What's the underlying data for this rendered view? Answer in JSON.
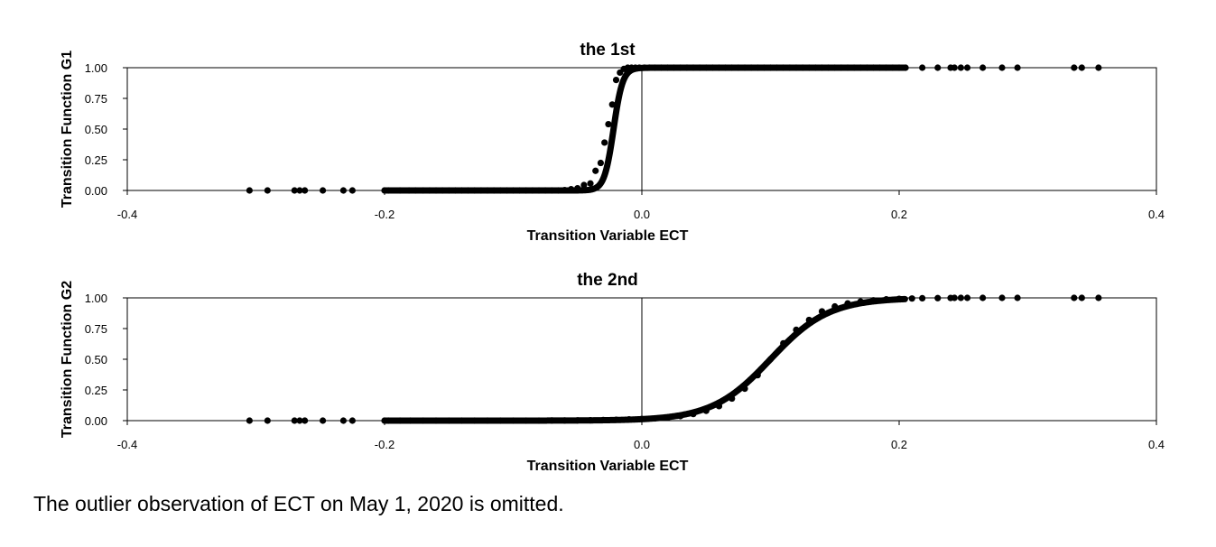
{
  "chart_data": [
    {
      "type": "scatter",
      "title": "the 1st",
      "xlabel": "Transition Variable ECT",
      "ylabel": "Transition Function G1",
      "xlim": [
        -0.4,
        0.4
      ],
      "ylim": [
        0,
        1
      ],
      "xticks": [
        "-0.4",
        "-0.2",
        "0.0",
        "0.2",
        "0.4"
      ],
      "yticks": [
        "0.00",
        "0.25",
        "0.50",
        "0.75",
        "1.00"
      ],
      "grid": false,
      "curve": {
        "form": "logistic",
        "center": -0.022,
        "slope": 280
      },
      "x": [
        -0.305,
        -0.291,
        -0.27,
        -0.266,
        -0.262,
        -0.248,
        -0.232,
        -0.225,
        -0.2,
        -0.197,
        -0.188,
        -0.181,
        -0.176,
        -0.17,
        -0.165,
        -0.16,
        -0.155,
        -0.15,
        -0.145,
        -0.14,
        -0.135,
        -0.13,
        -0.125,
        -0.12,
        -0.115,
        -0.11,
        -0.105,
        -0.1,
        -0.095,
        -0.09,
        -0.085,
        -0.08,
        -0.075,
        -0.07,
        -0.065,
        -0.06,
        -0.055,
        -0.05,
        -0.045,
        -0.04,
        -0.036,
        -0.032,
        -0.029,
        -0.026,
        -0.023,
        -0.02,
        -0.017,
        -0.014,
        -0.011,
        -0.008,
        -0.005,
        -0.002,
        0.002,
        0.006,
        0.01,
        0.015,
        0.02,
        0.025,
        0.03,
        0.035,
        0.04,
        0.045,
        0.05,
        0.055,
        0.06,
        0.065,
        0.07,
        0.075,
        0.08,
        0.085,
        0.09,
        0.095,
        0.1,
        0.105,
        0.11,
        0.115,
        0.12,
        0.125,
        0.13,
        0.135,
        0.14,
        0.145,
        0.15,
        0.155,
        0.16,
        0.165,
        0.17,
        0.175,
        0.18,
        0.185,
        0.19,
        0.195,
        0.2,
        0.205,
        0.218,
        0.23,
        0.24,
        0.243,
        0.248,
        0.253,
        0.265,
        0.28,
        0.292,
        0.336,
        0.342,
        0.355
      ],
      "y": [
        0,
        0,
        0,
        0,
        0,
        0,
        0,
        0,
        0,
        0,
        0,
        0,
        0,
        0,
        0,
        0,
        0,
        0,
        0,
        0,
        0,
        0,
        0,
        0,
        0,
        0,
        0,
        0,
        0,
        0,
        0,
        0,
        0,
        0,
        0,
        0.003,
        0.01,
        0.018,
        0.044,
        0.057,
        0.16,
        0.224,
        0.39,
        0.54,
        0.7,
        0.9,
        0.96,
        0.99,
        1,
        1,
        1,
        1,
        1,
        1,
        1,
        1,
        1,
        1,
        1,
        1,
        1,
        1,
        1,
        1,
        1,
        1,
        1,
        1,
        1,
        1,
        1,
        1,
        1,
        1,
        1,
        1,
        1,
        1,
        1,
        1,
        1,
        1,
        1,
        1,
        1,
        1,
        1,
        1,
        1,
        1,
        1,
        1,
        1,
        1,
        1,
        1,
        1,
        1,
        1,
        1,
        1,
        1,
        1,
        1,
        1,
        1
      ]
    },
    {
      "type": "scatter",
      "title": "the 2nd",
      "xlabel": "Transition Variable ECT",
      "ylabel": "Transition Function G2",
      "xlim": [
        -0.4,
        0.4
      ],
      "ylim": [
        0,
        1
      ],
      "xticks": [
        "-0.4",
        "-0.2",
        "0.0",
        "0.2",
        "0.4"
      ],
      "yticks": [
        "0.00",
        "0.25",
        "0.50",
        "0.75",
        "1.00"
      ],
      "grid": false,
      "curve": {
        "form": "logistic",
        "center": 0.1,
        "slope": 44
      },
      "x": [
        -0.305,
        -0.291,
        -0.27,
        -0.266,
        -0.262,
        -0.248,
        -0.232,
        -0.225,
        -0.2,
        -0.197,
        -0.188,
        -0.18,
        -0.17,
        -0.16,
        -0.15,
        -0.14,
        -0.13,
        -0.12,
        -0.11,
        -0.1,
        -0.09,
        -0.08,
        -0.07,
        -0.06,
        -0.05,
        -0.04,
        -0.03,
        -0.02,
        -0.01,
        0,
        0.01,
        0.02,
        0.03,
        0.04,
        0.05,
        0.06,
        0.07,
        0.08,
        0.09,
        0.1,
        0.11,
        0.12,
        0.13,
        0.14,
        0.15,
        0.16,
        0.17,
        0.18,
        0.19,
        0.2,
        0.21,
        0.218,
        0.23,
        0.24,
        0.243,
        0.248,
        0.253,
        0.265,
        0.28,
        0.292,
        0.336,
        0.342,
        0.355
      ],
      "y": [
        0,
        0,
        0,
        0,
        0,
        0,
        0,
        0,
        0,
        0,
        0,
        0,
        0,
        0,
        0,
        0,
        0,
        0,
        0,
        0,
        0,
        0,
        0.001,
        0.001,
        0.002,
        0.003,
        0.005,
        0.007,
        0.01,
        0.013,
        0.018,
        0.025,
        0.037,
        0.054,
        0.08,
        0.118,
        0.18,
        0.26,
        0.37,
        0.5,
        0.63,
        0.74,
        0.82,
        0.89,
        0.93,
        0.955,
        0.97,
        0.98,
        0.988,
        0.992,
        0.995,
        0.997,
        0.998,
        0.999,
        1,
        1,
        1,
        1,
        1,
        1,
        1,
        1,
        1
      ]
    }
  ],
  "footnote": "The outlier observation of ECT on May 1, 2020 is omitted."
}
